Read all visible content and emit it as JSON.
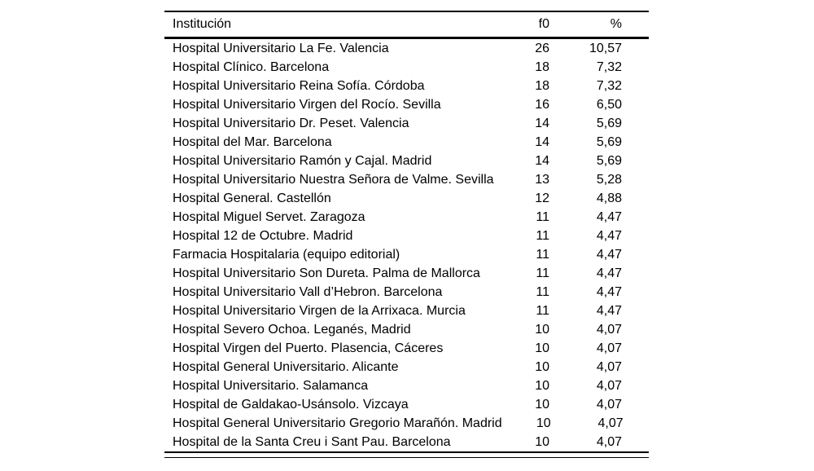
{
  "colors": {
    "background": "#ffffff",
    "text": "#000000",
    "rule": "#000000"
  },
  "table": {
    "columns": {
      "institution": "Institución",
      "frequency": "f0",
      "percent": "%"
    },
    "rows": [
      {
        "institution": "Hospital Universitario La Fe. Valencia",
        "f0": "26",
        "pct": "10,57"
      },
      {
        "institution": "Hospital Clínico. Barcelona",
        "f0": "18",
        "pct": "7,32"
      },
      {
        "institution": "Hospital Universitario Reina Sofía. Córdoba",
        "f0": "18",
        "pct": "7,32"
      },
      {
        "institution": "Hospital Universitario Virgen del Rocío. Sevilla",
        "f0": "16",
        "pct": "6,50"
      },
      {
        "institution": "Hospital Universitario Dr. Peset. Valencia",
        "f0": "14",
        "pct": "5,69"
      },
      {
        "institution": "Hospital del Mar. Barcelona",
        "f0": "14",
        "pct": "5,69"
      },
      {
        "institution": "Hospital Universitario Ramón y Cajal. Madrid",
        "f0": "14",
        "pct": "5,69"
      },
      {
        "institution": "Hospital Universitario Nuestra Señora de Valme. Sevilla",
        "f0": "13",
        "pct": "5,28"
      },
      {
        "institution": "Hospital General. Castellón",
        "f0": "12",
        "pct": "4,88"
      },
      {
        "institution": "Hospital Miguel Servet. Zaragoza",
        "f0": "11",
        "pct": "4,47"
      },
      {
        "institution": "Hospital 12 de Octubre. Madrid",
        "f0": "11",
        "pct": "4,47"
      },
      {
        "institution": "Farmacia Hospitalaria (equipo editorial)",
        "f0": "11",
        "pct": "4,47"
      },
      {
        "institution": "Hospital Universitario Son Dureta. Palma de Mallorca",
        "f0": "11",
        "pct": "4,47"
      },
      {
        "institution": "Hospital Universitario Vall d’Hebron. Barcelona",
        "f0": "11",
        "pct": "4,47"
      },
      {
        "institution": "Hospital Universitario Virgen de la Arrixaca. Murcia",
        "f0": "11",
        "pct": "4,47"
      },
      {
        "institution": "Hospital Severo Ochoa. Leganés, Madrid",
        "f0": "10",
        "pct": "4,07"
      },
      {
        "institution": "Hospital Virgen del Puerto. Plasencia, Cáceres",
        "f0": "10",
        "pct": "4,07"
      },
      {
        "institution": "Hospital General Universitario. Alicante",
        "f0": "10",
        "pct": "4,07"
      },
      {
        "institution": "Hospital Universitario. Salamanca",
        "f0": "10",
        "pct": "4,07"
      },
      {
        "institution": "Hospital de Galdakao-Usánsolo. Vizcaya",
        "f0": "10",
        "pct": "4,07"
      },
      {
        "institution": "Hospital General Universitario Gregorio Marañón. Madrid",
        "f0": "10",
        "pct": "4,07"
      },
      {
        "institution": "Hospital de la Santa Creu i Sant Pau. Barcelona",
        "f0": "10",
        "pct": "4,07"
      }
    ]
  }
}
